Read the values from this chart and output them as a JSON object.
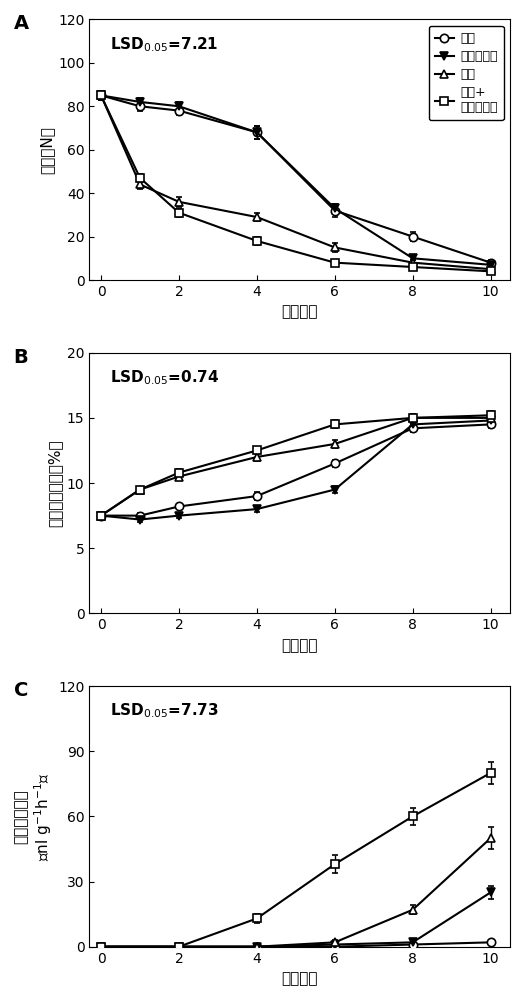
{
  "x": [
    0,
    1,
    2,
    4,
    6,
    8,
    10
  ],
  "x_C": [
    0,
    2,
    4,
    6,
    8,
    10
  ],
  "A_control": [
    85,
    80,
    78,
    68,
    32,
    20,
    8
  ],
  "A_mj": [
    85,
    82,
    80,
    68,
    33,
    10,
    7
  ],
  "A_eth": [
    85,
    44,
    36,
    29,
    15,
    8,
    5
  ],
  "A_eth_mj": [
    85,
    47,
    31,
    18,
    8,
    6,
    4
  ],
  "A_control_err": [
    2,
    2,
    2,
    3,
    3,
    2,
    1
  ],
  "A_mj_err": [
    2,
    2,
    2,
    3,
    2,
    1,
    1
  ],
  "A_eth_err": [
    2,
    2,
    2,
    2,
    2,
    1,
    1
  ],
  "A_eth_mj_err": [
    2,
    2,
    2,
    2,
    1,
    1,
    1
  ],
  "B_control": [
    7.5,
    7.5,
    8.2,
    9.0,
    11.5,
    14.2,
    14.5
  ],
  "B_mj": [
    7.5,
    7.2,
    7.5,
    8.0,
    9.5,
    14.5,
    14.8
  ],
  "B_eth": [
    7.5,
    9.5,
    10.5,
    12.0,
    13.0,
    15.0,
    15.0
  ],
  "B_eth_mj": [
    7.5,
    9.5,
    10.8,
    12.5,
    14.5,
    15.0,
    15.2
  ],
  "B_control_err": [
    0.2,
    0.2,
    0.2,
    0.3,
    0.3,
    0.3,
    0.3
  ],
  "B_mj_err": [
    0.2,
    0.2,
    0.2,
    0.2,
    0.3,
    0.3,
    0.3
  ],
  "B_eth_err": [
    0.2,
    0.2,
    0.3,
    0.3,
    0.3,
    0.3,
    0.3
  ],
  "B_eth_mj_err": [
    0.2,
    0.2,
    0.3,
    0.3,
    0.3,
    0.3,
    0.3
  ],
  "C_control": [
    0,
    0,
    0,
    0,
    1,
    2
  ],
  "C_mj": [
    0,
    0,
    0,
    1,
    2,
    25
  ],
  "C_eth": [
    0,
    0,
    0,
    2,
    17,
    50
  ],
  "C_eth_mj": [
    0,
    0,
    13,
    38,
    60,
    80
  ],
  "C_control_err": [
    0,
    0,
    0,
    0,
    0.5,
    1
  ],
  "C_mj_err": [
    0,
    0,
    0,
    0,
    1,
    3
  ],
  "C_eth_err": [
    0,
    0,
    0,
    1,
    2,
    5
  ],
  "C_eth_mj_err": [
    0,
    0,
    2,
    4,
    4,
    5
  ],
  "lsd_A": "LSD",
  "lsd_A_sub": "0.05",
  "lsd_A_val": "=7.21",
  "lsd_B": "LSD",
  "lsd_B_sub": "0.05",
  "lsd_B_val": "=0.74",
  "lsd_C": "LSD",
  "lsd_C_sub": "0.05",
  "lsd_C_val": "=7.73",
  "legend_label_0": "对照",
  "legend_label_1": "茶莉酸甲酩",
  "legend_label_2": "乙烯",
  "legend_label_3": "乙烯+",
  "legend_label_4": "茶莉酸甲酩",
  "ylabel_A": "硬度（N）",
  "ylabel_B": "可溶性固形物（%）",
  "ylabel_C1": "乙烯释放速率",
  "ylabel_C2": "（nl g",
  "ylabel_C2b": "-1",
  "ylabel_C2c": "h",
  "ylabel_C2d": "-1",
  "ylabel_C2e": "）",
  "xlabel": "贮藏天数",
  "ylim_A": [
    0,
    120
  ],
  "ylim_B": [
    0,
    20
  ],
  "ylim_C": [
    0,
    120
  ],
  "yticks_A": [
    0,
    20,
    40,
    60,
    80,
    100,
    120
  ],
  "yticks_B": [
    0,
    5,
    10,
    15,
    20
  ],
  "yticks_C": [
    0,
    30,
    60,
    90,
    120
  ],
  "xticks": [
    0,
    2,
    4,
    6,
    8,
    10
  ]
}
